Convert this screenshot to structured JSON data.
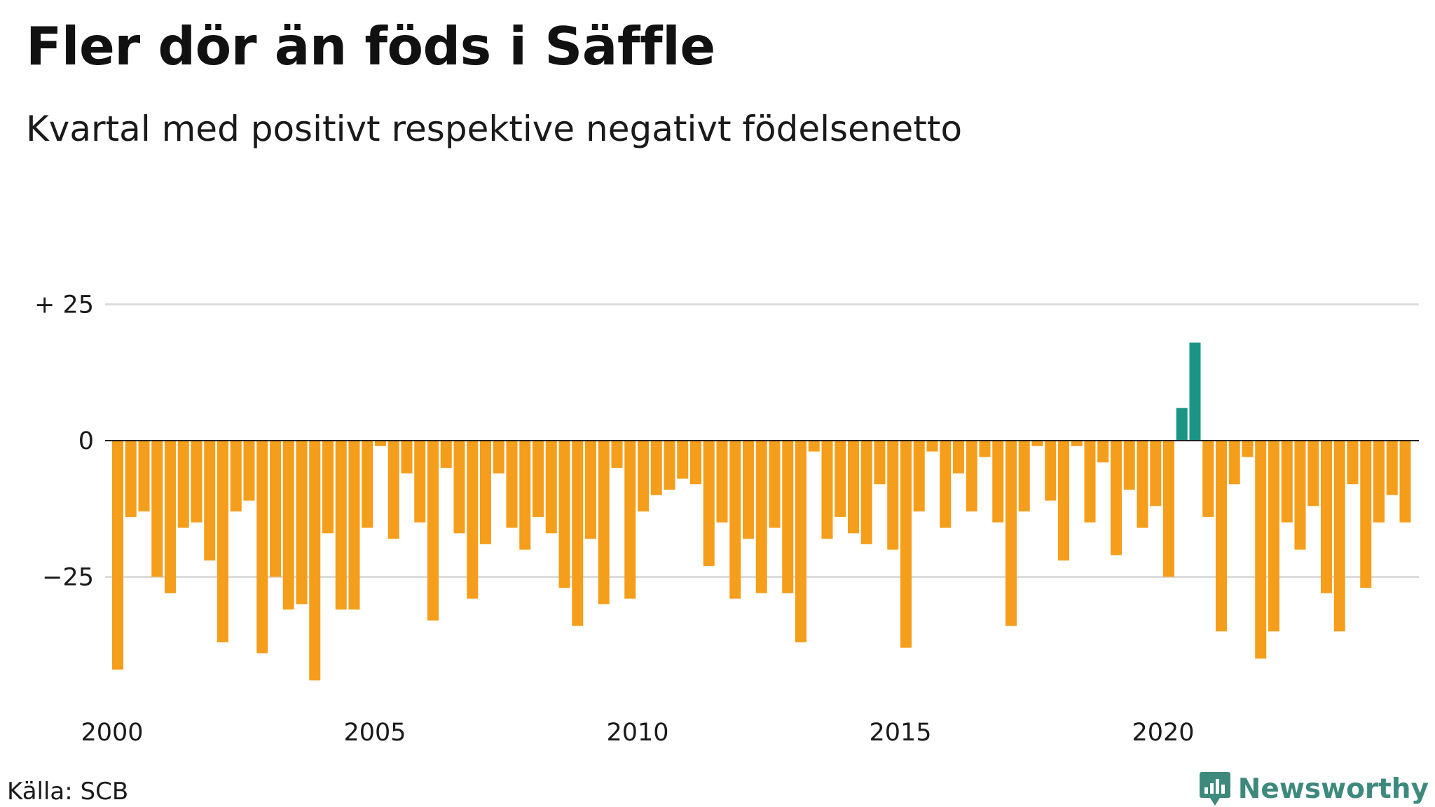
{
  "chart_data": {
    "type": "bar",
    "title": "Fler dör än föds i Säffle",
    "subtitle": "Kvartal med positivt respektive negativt födelsenetto",
    "xlabel": "",
    "ylabel": "",
    "ylim": [
      -45,
      30
    ],
    "y_ticks": [
      {
        "value": 25,
        "label": "+ 25"
      },
      {
        "value": 0,
        "label": "0"
      },
      {
        "value": -25,
        "label": "−25"
      }
    ],
    "x_ticks": [
      {
        "year": 2000,
        "label": "2000"
      },
      {
        "year": 2005,
        "label": "2005"
      },
      {
        "year": 2010,
        "label": "2010"
      },
      {
        "year": 2015,
        "label": "2015"
      },
      {
        "year": 2020,
        "label": "2020"
      }
    ],
    "start_year": 2000,
    "grid": true,
    "legend": "none",
    "colors": {
      "negative": "#f59e1b",
      "positive": "#1a9585"
    },
    "series": [
      {
        "values": [
          -42,
          -14,
          -13,
          -25,
          -28,
          -16,
          -15,
          -22,
          -37,
          -13,
          -11,
          -39,
          -25,
          -31,
          -30,
          -44,
          -17,
          -31,
          -31,
          -16,
          -1,
          -18,
          -6,
          -15,
          -33,
          -5,
          -17,
          -29,
          -19,
          -6,
          -16,
          -20,
          -14,
          -17,
          -27,
          -34,
          -18,
          -30,
          -5,
          -29,
          -13,
          -10,
          -9,
          -7,
          -8,
          -23,
          -15,
          -29,
          -18,
          -28,
          -16,
          -28,
          -37,
          -2,
          -18,
          -14,
          -17,
          -19,
          -8,
          -20,
          -38,
          -13,
          -2,
          -16,
          -6,
          -13,
          -3,
          -15,
          -34,
          -13,
          -1,
          -11,
          -22,
          -1,
          -15,
          -4,
          -21,
          -9,
          -16,
          -12,
          -25,
          6,
          18,
          -14,
          -35,
          -8,
          -3,
          -40,
          -35,
          -15,
          -20,
          -12,
          -28,
          -35,
          -8,
          -27,
          -15,
          -10,
          -15
        ]
      }
    ]
  },
  "footer": {
    "source": "Källa: SCB",
    "brand": "Newsworthy"
  }
}
